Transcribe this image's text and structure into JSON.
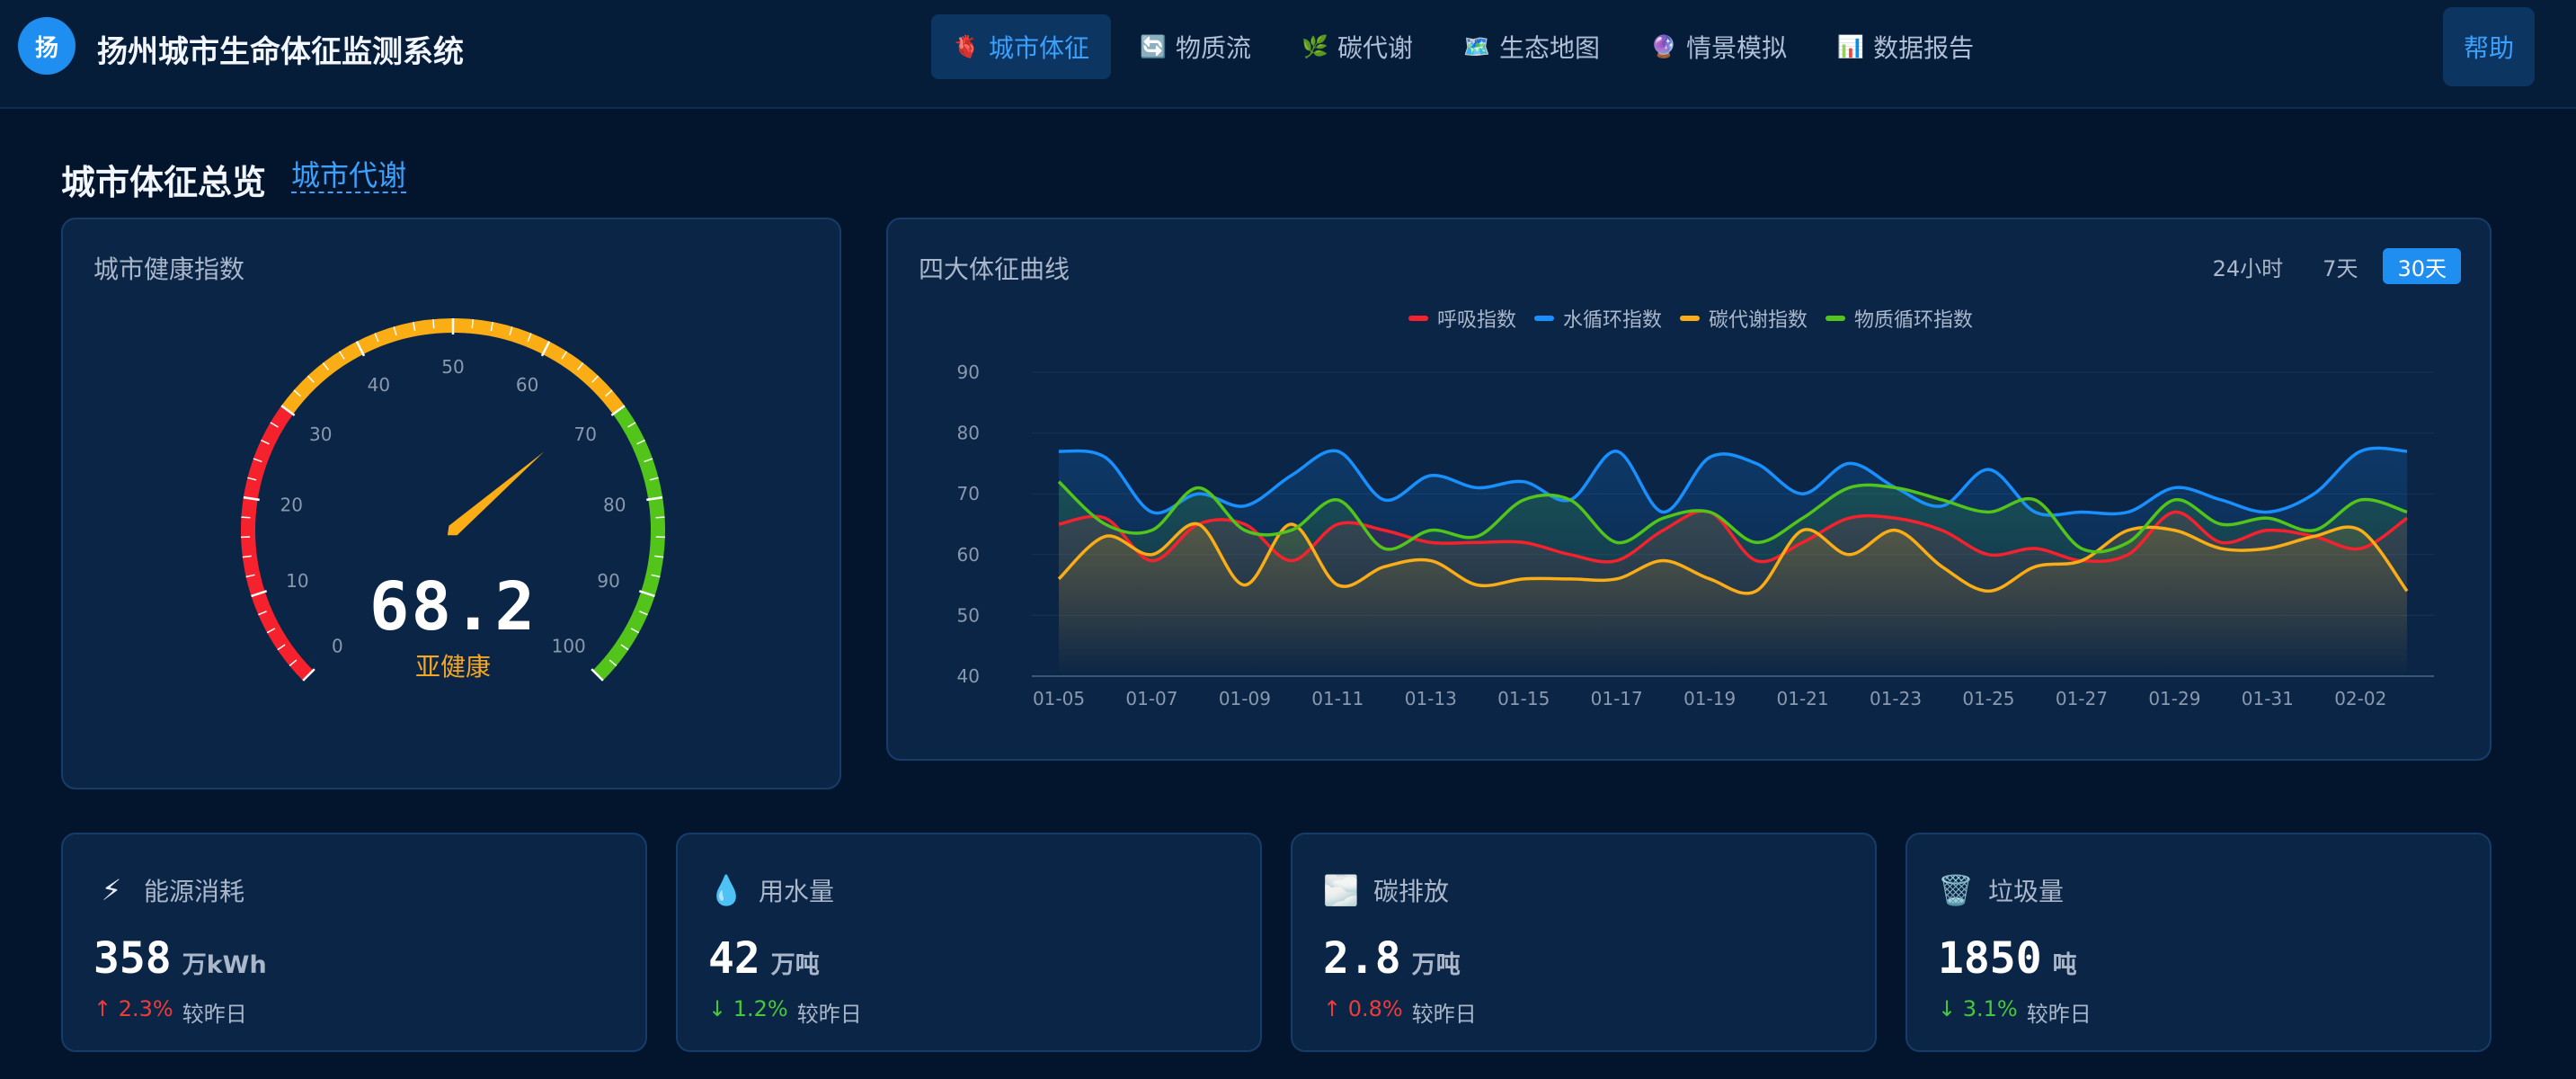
{
  "app": {
    "logo": "扬",
    "title": "扬州城市生命体征监测系统"
  },
  "nav": [
    {
      "icon": "🫀",
      "label": "城市体征",
      "active": true
    },
    {
      "icon": "🔄",
      "label": "物质流",
      "active": false
    },
    {
      "icon": "🌿",
      "label": "碳代谢",
      "active": false
    },
    {
      "icon": "🗺️",
      "label": "生态地图",
      "active": false
    },
    {
      "icon": "🔮",
      "label": "情景模拟",
      "active": false
    },
    {
      "icon": "📊",
      "label": "数据报告",
      "active": false
    }
  ],
  "help_label": "帮助",
  "section": {
    "title": "城市体征总览",
    "link": "城市代谢"
  },
  "gauge": {
    "title": "城市健康指数",
    "value": "68.2",
    "value_num": 68.2,
    "min": 0,
    "max": 100,
    "status": "亚健康",
    "tick_labels": [
      "0",
      "10",
      "20",
      "30",
      "40",
      "50",
      "60",
      "70",
      "80",
      "90",
      "100"
    ],
    "zones": [
      {
        "from": 0,
        "to": 30,
        "color": "#f5222d"
      },
      {
        "from": 30,
        "to": 70,
        "color": "#faad14"
      },
      {
        "from": 70,
        "to": 100,
        "color": "#52c41a"
      }
    ],
    "needle_color": "#faad14"
  },
  "chart": {
    "title": "四大体征曲线",
    "ranges": [
      {
        "label": "24小时",
        "active": false
      },
      {
        "label": "7天",
        "active": false
      },
      {
        "label": "30天",
        "active": true
      }
    ],
    "legend": [
      {
        "name": "呼吸指数",
        "color": "#f5222d"
      },
      {
        "name": "水循环指数",
        "color": "#1890ff"
      },
      {
        "name": "碳代谢指数",
        "color": "#faad14"
      },
      {
        "name": "物质循环指数",
        "color": "#52c41a"
      }
    ]
  },
  "chart_data": {
    "type": "line",
    "x": [
      "01-05",
      "01-06",
      "01-07",
      "01-08",
      "01-09",
      "01-10",
      "01-11",
      "01-12",
      "01-13",
      "01-14",
      "01-15",
      "01-16",
      "01-17",
      "01-18",
      "01-19",
      "01-20",
      "01-21",
      "01-22",
      "01-23",
      "01-24",
      "01-25",
      "01-26",
      "01-27",
      "01-28",
      "01-29",
      "01-30",
      "01-31",
      "02-01",
      "02-02",
      "02-03"
    ],
    "x_tick_labels": [
      "01-05",
      "01-07",
      "01-09",
      "01-11",
      "01-13",
      "01-15",
      "01-17",
      "01-19",
      "01-21",
      "01-23",
      "01-25",
      "01-27",
      "01-29",
      "01-31",
      "02-02"
    ],
    "ylim": [
      40,
      90
    ],
    "y_ticks": [
      40,
      50,
      60,
      70,
      80,
      90
    ],
    "grid": true,
    "legend_position": "top",
    "series": [
      {
        "name": "呼吸指数",
        "color": "#f5222d",
        "values": [
          65,
          66,
          59,
          65,
          65,
          59,
          65,
          64,
          62,
          62,
          62,
          60,
          59,
          64,
          67,
          59,
          62,
          66,
          66,
          64,
          60,
          61,
          59,
          60,
          67,
          62,
          64,
          63,
          61,
          66
        ]
      },
      {
        "name": "水循环指数",
        "color": "#1890ff",
        "values": [
          77,
          76,
          67,
          70,
          68,
          73,
          77,
          69,
          73,
          71,
          72,
          69,
          77,
          67,
          76,
          75,
          70,
          75,
          71,
          68,
          74,
          67,
          67,
          67,
          71,
          69,
          67,
          70,
          77,
          77
        ]
      },
      {
        "name": "碳代谢指数",
        "color": "#faad14",
        "values": [
          56,
          63,
          60,
          65,
          55,
          65,
          55,
          58,
          59,
          55,
          56,
          56,
          56,
          59,
          56,
          54,
          64,
          60,
          64,
          58,
          54,
          58,
          59,
          64,
          64,
          61,
          61,
          63,
          64,
          54
        ]
      },
      {
        "name": "物质循环指数",
        "color": "#52c41a",
        "values": [
          72,
          65,
          64,
          71,
          64,
          64,
          69,
          61,
          64,
          63,
          69,
          69,
          62,
          66,
          67,
          62,
          66,
          71,
          71,
          69,
          67,
          69,
          61,
          62,
          69,
          65,
          66,
          64,
          69,
          67
        ]
      }
    ]
  },
  "stats": [
    {
      "icon": "⚡",
      "icon_name": "lightning-icon",
      "label": "能源消耗",
      "value": "358",
      "unit": "万kWh",
      "delta": "↑ 2.3%",
      "dir": "up",
      "cmp": "较昨日"
    },
    {
      "icon": "💧",
      "icon_name": "water-drop-icon",
      "label": "用水量",
      "value": "42",
      "unit": "万吨",
      "delta": "↓ 1.2%",
      "dir": "down",
      "cmp": "较昨日"
    },
    {
      "icon": "🌫️",
      "icon_name": "fog-icon",
      "label": "碳排放",
      "value": "2.8",
      "unit": "万吨",
      "delta": "↑ 0.8%",
      "dir": "up",
      "cmp": "较昨日"
    },
    {
      "icon": "🗑️",
      "icon_name": "trash-icon",
      "label": "垃圾量",
      "value": "1850",
      "unit": "吨",
      "delta": "↓ 3.1%",
      "dir": "down",
      "cmp": "较昨日"
    }
  ]
}
